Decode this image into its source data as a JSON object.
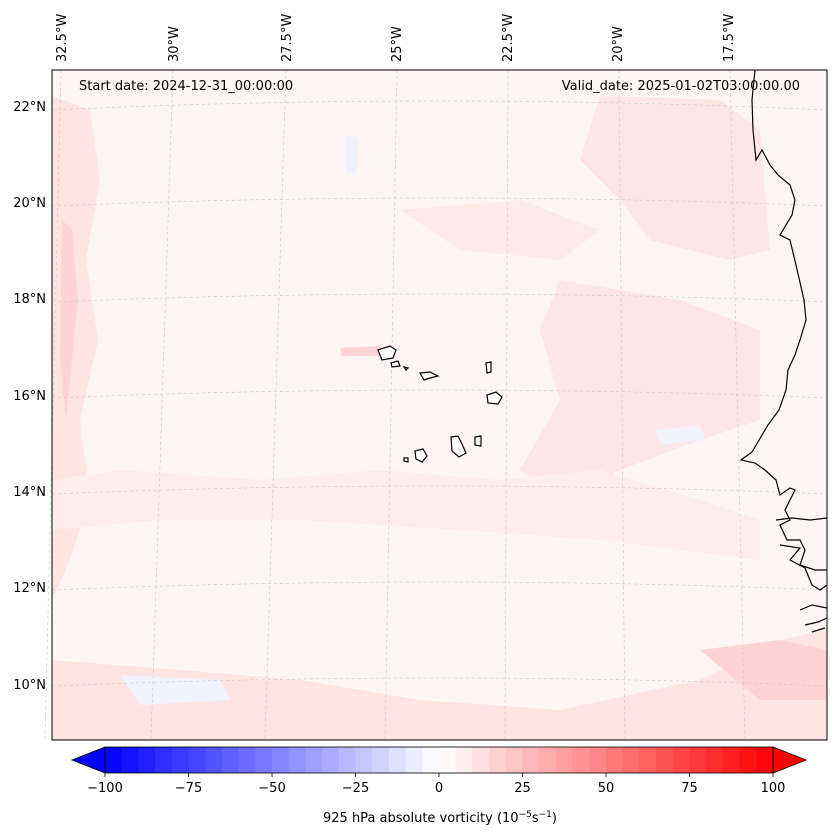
{
  "header": {
    "start_date": "Start date: 2024-12-31_00:00:00",
    "valid_date": "Valid_date: 2025-01-02T03:00:00.00"
  },
  "map": {
    "top_lon_labels": [
      "32.5°W",
      "30°W",
      "27.5°W",
      "25°W",
      "22.5°W",
      "20°W",
      "17.5°W"
    ],
    "left_lat_labels": [
      "22°N",
      "20°N",
      "18°N",
      "16°N",
      "14°N",
      "12°N",
      "10°N"
    ],
    "field_colors": {
      "background": "#fff5f5",
      "light_red": "#ffe4e4",
      "mid_red": "#ffd3d3",
      "light_blue": "#f0f2ff",
      "coastline": "#000000",
      "gridline": "#c8c8c8"
    }
  },
  "colorbar": {
    "tick_labels": [
      "−100",
      "−75",
      "−50",
      "−25",
      "0",
      "25",
      "50",
      "75",
      "100"
    ],
    "min": -100,
    "max": 100,
    "label": "925 hPa absolute vorticity (10",
    "label_exp1": "−5",
    "label_mid": "s",
    "label_exp2": "−1",
    "label_end": ")",
    "low_color": "#0000ff",
    "high_color": "#ff0000"
  }
}
